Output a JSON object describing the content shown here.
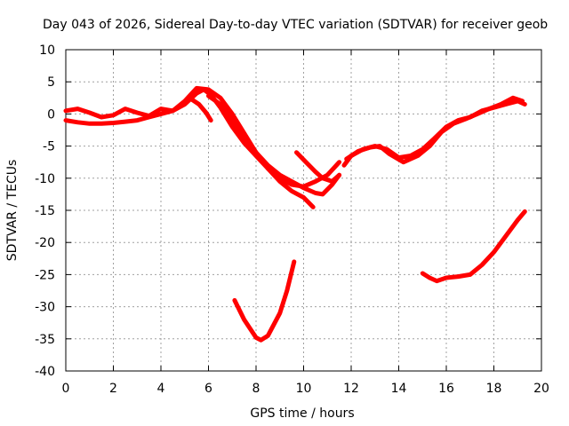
{
  "chart_data": {
    "type": "line",
    "title": "Day 043 of 2026, Sidereal Day-to-day VTEC variation (SDTVAR) for receiver geob",
    "xlabel": "GPS time / hours",
    "ylabel": "SDTVAR / TECUs",
    "xlim": [
      0,
      20
    ],
    "ylim": [
      -40,
      10
    ],
    "xticks": [
      "0",
      "2",
      "4",
      "6",
      "8",
      "10",
      "12",
      "14",
      "16",
      "18",
      "20"
    ],
    "yticks": [
      "10",
      "5",
      "0",
      "-5",
      "-10",
      "-15",
      "-20",
      "-25",
      "-30",
      "-35",
      "-40"
    ],
    "grid": true,
    "color": "#ff0000",
    "series": [
      {
        "name": "trace-1",
        "points": [
          [
            0,
            -1.0
          ],
          [
            0.5,
            -1.3
          ],
          [
            1,
            -1.5
          ],
          [
            1.5,
            -1.5
          ],
          [
            2,
            -1.4
          ],
          [
            2.5,
            -1.2
          ],
          [
            3,
            -1.0
          ],
          [
            3.5,
            -0.5
          ],
          [
            4,
            0.0
          ],
          [
            4.5,
            0.5
          ],
          [
            5,
            1.5
          ],
          [
            5.5,
            3.2
          ],
          [
            5.8,
            3.8
          ],
          [
            6.1,
            3.0
          ],
          [
            6.5,
            1.0
          ],
          [
            7,
            -2.0
          ],
          [
            7.5,
            -4.5
          ],
          [
            8,
            -6.5
          ],
          [
            8.5,
            -8.5
          ],
          [
            9,
            -10.0
          ],
          [
            9.5,
            -11.0
          ],
          [
            10,
            -11.3
          ],
          [
            10.5,
            -10.5
          ],
          [
            11,
            -9.5
          ],
          [
            11.5,
            -7.5
          ]
        ]
      },
      {
        "name": "trace-2",
        "points": [
          [
            0,
            0.5
          ],
          [
            0.5,
            0.8
          ],
          [
            1,
            0.2
          ],
          [
            1.5,
            -0.5
          ],
          [
            2,
            -0.2
          ],
          [
            2.5,
            0.8
          ],
          [
            3,
            0.2
          ],
          [
            3.5,
            -0.3
          ],
          [
            4,
            0.8
          ],
          [
            4.5,
            0.5
          ],
          [
            5,
            2.0
          ],
          [
            5.5,
            4.0
          ],
          [
            6,
            3.8
          ],
          [
            6.5,
            2.5
          ],
          [
            7,
            0.0
          ],
          [
            7.5,
            -3.0
          ],
          [
            8,
            -6.0
          ],
          [
            8.5,
            -8.5
          ],
          [
            9,
            -10.5
          ],
          [
            9.5,
            -12.0
          ],
          [
            10,
            -13.0
          ],
          [
            10.4,
            -14.5
          ]
        ]
      },
      {
        "name": "trace-3",
        "points": [
          [
            6,
            2.8
          ],
          [
            6.5,
            1.5
          ],
          [
            7,
            -1.0
          ],
          [
            7.5,
            -3.5
          ],
          [
            8,
            -6.0
          ],
          [
            8.5,
            -8.0
          ],
          [
            9,
            -9.5
          ],
          [
            9.5,
            -10.5
          ],
          [
            10,
            -11.5
          ],
          [
            10.5,
            -12.3
          ],
          [
            10.8,
            -12.5
          ],
          [
            11.2,
            -11.0
          ],
          [
            11.5,
            -9.5
          ]
        ]
      },
      {
        "name": "trace-4",
        "points": [
          [
            5.2,
            2.5
          ],
          [
            5.6,
            1.5
          ],
          [
            5.9,
            0.2
          ],
          [
            6.1,
            -1.0
          ]
        ]
      },
      {
        "name": "trace-5",
        "points": [
          [
            7.1,
            -29.0
          ],
          [
            7.5,
            -32.0
          ],
          [
            8,
            -34.8
          ],
          [
            8.2,
            -35.2
          ],
          [
            8.5,
            -34.5
          ],
          [
            9,
            -31.0
          ],
          [
            9.3,
            -27.5
          ],
          [
            9.6,
            -23.0
          ]
        ]
      },
      {
        "name": "trace-6",
        "points": [
          [
            9.7,
            -6.0
          ],
          [
            10.1,
            -7.5
          ],
          [
            10.5,
            -9.0
          ],
          [
            10.8,
            -10.0
          ],
          [
            11.2,
            -10.5
          ],
          [
            11.5,
            -9.5
          ]
        ]
      },
      {
        "name": "trace-7",
        "points": [
          [
            11.7,
            -8.0
          ],
          [
            12,
            -6.5
          ],
          [
            12.5,
            -5.5
          ],
          [
            13,
            -5.0
          ],
          [
            13.5,
            -5.5
          ],
          [
            14,
            -6.8
          ],
          [
            14.5,
            -6.5
          ],
          [
            15,
            -5.5
          ],
          [
            15.5,
            -3.8
          ],
          [
            16,
            -2.0
          ],
          [
            16.5,
            -1.0
          ],
          [
            17,
            -0.5
          ],
          [
            17.5,
            0.5
          ],
          [
            18,
            1.0
          ],
          [
            18.5,
            1.5
          ],
          [
            19,
            2.0
          ],
          [
            19.3,
            1.5
          ]
        ]
      },
      {
        "name": "trace-8",
        "points": [
          [
            11.8,
            -7.0
          ],
          [
            12.3,
            -5.8
          ],
          [
            12.8,
            -5.2
          ],
          [
            13.2,
            -5.0
          ],
          [
            13.6,
            -6.2
          ],
          [
            14.2,
            -7.5
          ],
          [
            14.8,
            -6.5
          ],
          [
            15.3,
            -5.0
          ],
          [
            15.8,
            -2.8
          ],
          [
            16.3,
            -1.5
          ],
          [
            16.8,
            -0.8
          ],
          [
            17.3,
            0.0
          ],
          [
            17.8,
            0.8
          ],
          [
            18.3,
            1.5
          ],
          [
            18.8,
            2.5
          ],
          [
            19.2,
            2.0
          ]
        ]
      },
      {
        "name": "trace-9",
        "points": [
          [
            15,
            -24.8
          ],
          [
            15.3,
            -25.5
          ],
          [
            15.6,
            -26.0
          ],
          [
            16,
            -25.5
          ],
          [
            16.5,
            -25.3
          ],
          [
            17,
            -25.0
          ],
          [
            17.5,
            -23.5
          ],
          [
            18,
            -21.5
          ],
          [
            18.5,
            -19.0
          ],
          [
            19,
            -16.5
          ],
          [
            19.3,
            -15.2
          ]
        ]
      }
    ]
  }
}
